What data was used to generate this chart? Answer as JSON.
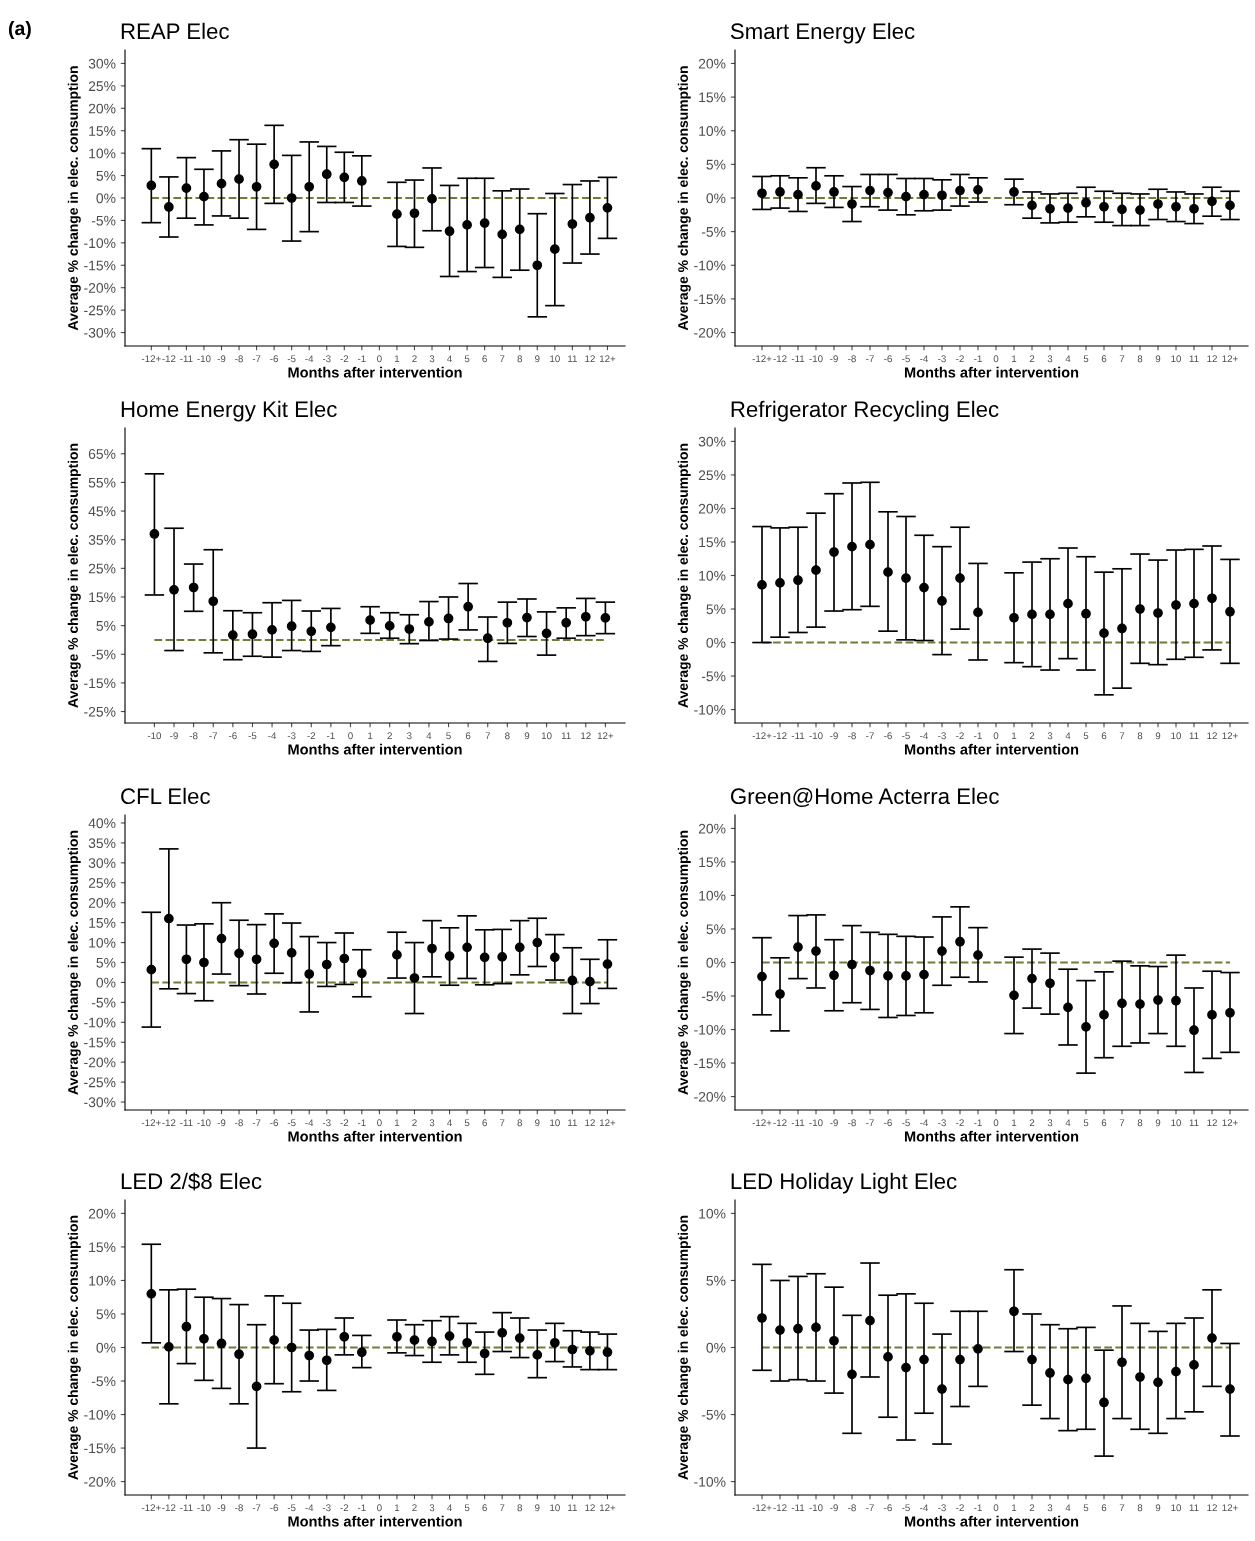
{
  "chart_data": [
    {
      "type": "scatter",
      "title": "REAP Elec",
      "xlabel": "Months after intervention",
      "ylabel": "Average % change in elec. consumption",
      "annotations": [
        "(a)"
      ],
      "color": "#000000",
      "marker": "circle",
      "grid": false,
      "categories": [
        "-12+",
        "-12",
        "-11",
        "-10",
        "-9",
        "-8",
        "-7",
        "-6",
        "-5",
        "-4",
        "-3",
        "-2",
        "-1",
        "0",
        "1",
        "2",
        "3",
        "4",
        "5",
        "6",
        "7",
        "8",
        "9",
        "10",
        "11",
        "12",
        "12+"
      ],
      "values": [
        2.8,
        -2,
        2.2,
        0.3,
        3.2,
        4.2,
        2.5,
        7.5,
        0,
        2.5,
        5.3,
        4.6,
        3.8,
        null,
        -3.6,
        -3.4,
        -0.2,
        -7.4,
        -6,
        -5.6,
        -8.1,
        -7,
        -15,
        -11.4,
        -5.8,
        -4.4,
        -2.2
      ],
      "errors": [
        [
          -5.5,
          11
        ],
        [
          -8.7,
          4.7
        ],
        [
          -4.5,
          9
        ],
        [
          -6,
          6.4
        ],
        [
          -4,
          10.5
        ],
        [
          -4.5,
          13
        ],
        [
          -7,
          12
        ],
        [
          -1.2,
          16.2
        ],
        [
          -9.6,
          9.5
        ],
        [
          -7.5,
          12.5
        ],
        [
          -1,
          11.5
        ],
        [
          -1,
          10.2
        ],
        [
          -1.8,
          9.4
        ],
        null,
        [
          -10.8,
          3.5
        ],
        [
          -11,
          4
        ],
        [
          -7.3,
          6.7
        ],
        [
          -17.5,
          2.8
        ],
        [
          -16.4,
          4.4
        ],
        [
          -15.5,
          4.4
        ],
        [
          -17.7,
          1.6
        ],
        [
          -16.1,
          2
        ],
        [
          -26.5,
          -3.5
        ],
        [
          -24,
          1
        ],
        [
          -14.5,
          3
        ],
        [
          -12.5,
          3.8
        ],
        [
          -9,
          4.6
        ]
      ],
      "ylim": [
        -33,
        33
      ],
      "yticks": [
        {
          "value": -30,
          "label": "-30%"
        },
        {
          "value": -25,
          "label": "-25%"
        },
        {
          "value": -20,
          "label": "-20%"
        },
        {
          "value": -15,
          "label": "-15%"
        },
        {
          "value": -10,
          "label": "-10%"
        },
        {
          "value": -5,
          "label": "-5%"
        },
        {
          "value": 0,
          "label": "0%"
        },
        {
          "value": 5,
          "label": "5%"
        },
        {
          "value": 10,
          "label": "10%"
        },
        {
          "value": 15,
          "label": "15%"
        },
        {
          "value": 20,
          "label": "20%"
        },
        {
          "value": 25,
          "label": "25%"
        },
        {
          "value": 30,
          "label": "30%"
        }
      ],
      "ref_lines": [
        {
          "axis": "y",
          "value": 0,
          "color": "#6b7d3a",
          "line_style": "dashed"
        }
      ]
    },
    {
      "type": "scatter",
      "title": "Smart Energy Elec",
      "xlabel": "Months after intervention",
      "ylabel": "Average % change in elec. consumption",
      "color": "#000000",
      "marker": "circle",
      "grid": false,
      "categories": [
        "-12+",
        "-12",
        "-11",
        "-10",
        "-9",
        "-8",
        "-7",
        "-6",
        "-5",
        "-4",
        "-3",
        "-2",
        "-1",
        "0",
        "1",
        "2",
        "3",
        "4",
        "5",
        "6",
        "7",
        "8",
        "9",
        "10",
        "11",
        "12",
        "12+"
      ],
      "values": [
        0.7,
        0.9,
        0.5,
        1.8,
        0.9,
        -0.9,
        1.1,
        0.8,
        0.2,
        0.5,
        0.4,
        1.1,
        1.2,
        null,
        0.9,
        -1.1,
        -1.6,
        -1.5,
        -0.7,
        -1.3,
        -1.7,
        -1.8,
        -0.9,
        -1.3,
        -1.6,
        -0.5,
        -1.1
      ],
      "errors": [
        [
          -1.7,
          3.2
        ],
        [
          -1.5,
          3.3
        ],
        [
          -2,
          3
        ],
        [
          -0.8,
          4.5
        ],
        [
          -1.4,
          3.3
        ],
        [
          -3.5,
          1.7
        ],
        [
          -1.3,
          3.5
        ],
        [
          -1.8,
          3.5
        ],
        [
          -2.5,
          2.9
        ],
        [
          -1.9,
          2.9
        ],
        [
          -1.8,
          2.7
        ],
        [
          -1.2,
          3.5
        ],
        [
          -0.6,
          3
        ],
        null,
        [
          -1,
          2.8
        ],
        [
          -3,
          0.9
        ],
        [
          -3.7,
          0.6
        ],
        [
          -3.6,
          0.7
        ],
        [
          -2.8,
          1.6
        ],
        [
          -3.6,
          1
        ],
        [
          -4.1,
          0.7
        ],
        [
          -4.1,
          0.6
        ],
        [
          -3.2,
          1.3
        ],
        [
          -3.5,
          0.9
        ],
        [
          -3.8,
          0.6
        ],
        [
          -2.7,
          1.6
        ],
        [
          -3.2,
          1
        ]
      ],
      "ylim": [
        -22,
        22
      ],
      "yticks": [
        {
          "value": -20,
          "label": "-20%"
        },
        {
          "value": -15,
          "label": "-15%"
        },
        {
          "value": -10,
          "label": "-10%"
        },
        {
          "value": -5,
          "label": "-5%"
        },
        {
          "value": 0,
          "label": "0%"
        },
        {
          "value": 5,
          "label": "5%"
        },
        {
          "value": 10,
          "label": "10%"
        },
        {
          "value": 15,
          "label": "15%"
        },
        {
          "value": 20,
          "label": "20%"
        }
      ],
      "ref_lines": [
        {
          "axis": "y",
          "value": 0,
          "color": "#6b7d3a",
          "line_style": "dashed"
        }
      ]
    },
    {
      "type": "scatter",
      "title": "Home Energy Kit Elec",
      "xlabel": "Months after intervention",
      "ylabel": "Average % change in elec. consumption",
      "color": "#000000",
      "marker": "circle",
      "grid": false,
      "categories": [
        "-10",
        "-9",
        "-8",
        "-7",
        "-6",
        "-5",
        "-4",
        "-3",
        "-2",
        "-1",
        "0",
        "1",
        "2",
        "3",
        "4",
        "5",
        "6",
        "7",
        "8",
        "9",
        "10",
        "11",
        "12",
        "12+"
      ],
      "values": [
        37,
        17.5,
        18.3,
        13.5,
        1.7,
        2,
        3.5,
        4.8,
        3,
        4.4,
        null,
        6.9,
        4.9,
        3.8,
        6.3,
        7.5,
        11.6,
        0.6,
        6,
        7.8,
        2.3,
        6,
        8.1,
        7.7
      ],
      "errors": [
        [
          15.7,
          58
        ],
        [
          -3.7,
          39
        ],
        [
          10,
          26.5
        ],
        [
          -4.5,
          31.5
        ],
        [
          -6.9,
          10.2
        ],
        [
          -5.7,
          9.5
        ],
        [
          -6,
          13
        ],
        [
          -3.7,
          13.8
        ],
        [
          -4,
          10.1
        ],
        [
          -2,
          11
        ],
        null,
        [
          2.3,
          11.6
        ],
        [
          0.6,
          9.5
        ],
        [
          -1.3,
          8.8
        ],
        [
          -0.2,
          13.4
        ],
        [
          0.3,
          15
        ],
        [
          3.5,
          19.7
        ],
        [
          -7.5,
          8
        ],
        [
          -1.2,
          13.2
        ],
        [
          1.2,
          14.3
        ],
        [
          -5.3,
          9.8
        ],
        [
          0.6,
          11.2
        ],
        [
          1.5,
          14.5
        ],
        [
          2.2,
          13.2
        ]
      ],
      "ylim": [
        -29,
        74
      ],
      "yticks": [
        {
          "value": -25,
          "label": "-25%"
        },
        {
          "value": -15,
          "label": "-15%"
        },
        {
          "value": -5,
          "label": "-5%"
        },
        {
          "value": 5,
          "label": "5%"
        },
        {
          "value": 15,
          "label": "15%"
        },
        {
          "value": 25,
          "label": "25%"
        },
        {
          "value": 35,
          "label": "35%"
        },
        {
          "value": 45,
          "label": "45%"
        },
        {
          "value": 55,
          "label": "55%"
        },
        {
          "value": 65,
          "label": "65%"
        }
      ],
      "ref_lines": [
        {
          "axis": "y",
          "value": 0,
          "color": "#6b7d3a",
          "line_style": "dashed"
        }
      ]
    },
    {
      "type": "scatter",
      "title": "Refrigerator Recycling Elec",
      "xlabel": "Months after intervention",
      "ylabel": "Average % change in elec. consumption",
      "color": "#000000",
      "marker": "circle",
      "grid": false,
      "categories": [
        "-12+",
        "-12",
        "-11",
        "-10",
        "-9",
        "-8",
        "-7",
        "-6",
        "-5",
        "-4",
        "-3",
        "-2",
        "-1",
        "0",
        "1",
        "2",
        "3",
        "4",
        "5",
        "6",
        "7",
        "8",
        "9",
        "10",
        "11",
        "12",
        "12+"
      ],
      "values": [
        8.6,
        8.9,
        9.3,
        10.8,
        13.5,
        14.3,
        14.6,
        10.5,
        9.6,
        8.2,
        6.2,
        9.6,
        4.5,
        null,
        3.7,
        4.2,
        4.2,
        5.8,
        4.3,
        1.4,
        2.1,
        5,
        4.4,
        5.6,
        5.8,
        6.6,
        4.6
      ],
      "errors": [
        [
          0,
          17.3
        ],
        [
          0.8,
          17.1
        ],
        [
          1.5,
          17.2
        ],
        [
          2.3,
          19.3
        ],
        [
          4.7,
          22.2
        ],
        [
          4.9,
          23.8
        ],
        [
          5.4,
          23.9
        ],
        [
          1.7,
          19.5
        ],
        [
          0.4,
          18.8
        ],
        [
          0.3,
          16
        ],
        [
          -1.8,
          14.3
        ],
        [
          2,
          17.2
        ],
        [
          -2.6,
          11.8
        ],
        null,
        [
          -3,
          10.4
        ],
        [
          -3.6,
          12
        ],
        [
          -4.1,
          12.5
        ],
        [
          -2.4,
          14.1
        ],
        [
          -4.1,
          12.8
        ],
        [
          -7.8,
          10.5
        ],
        [
          -6.8,
          11
        ],
        [
          -3.1,
          13.2
        ],
        [
          -3.3,
          12.3
        ],
        [
          -2.5,
          13.8
        ],
        [
          -2.2,
          13.9
        ],
        [
          -1.1,
          14.4
        ],
        [
          -3.1,
          12.4
        ]
      ],
      "ylim": [
        -12,
        32
      ],
      "yticks": [
        {
          "value": -10,
          "label": "-10%"
        },
        {
          "value": -5,
          "label": "-5%"
        },
        {
          "value": 0,
          "label": "0%"
        },
        {
          "value": 5,
          "label": "5%"
        },
        {
          "value": 10,
          "label": "10%"
        },
        {
          "value": 15,
          "label": "15%"
        },
        {
          "value": 20,
          "label": "20%"
        },
        {
          "value": 25,
          "label": "25%"
        },
        {
          "value": 30,
          "label": "30%"
        }
      ],
      "ref_lines": [
        {
          "axis": "y",
          "value": 0,
          "color": "#6b7d3a",
          "line_style": "dashed"
        }
      ]
    },
    {
      "type": "scatter",
      "title": "CFL Elec",
      "xlabel": "Months after intervention",
      "ylabel": "Average % change in elec. consumption",
      "color": "#000000",
      "marker": "circle",
      "grid": false,
      "categories": [
        "-12+",
        "-12",
        "-11",
        "-10",
        "-9",
        "-8",
        "-7",
        "-6",
        "-5",
        "-4",
        "-3",
        "-2",
        "-1",
        "0",
        "1",
        "2",
        "3",
        "4",
        "5",
        "6",
        "7",
        "8",
        "9",
        "10",
        "11",
        "12",
        "12+"
      ],
      "values": [
        3.2,
        16,
        5.8,
        5,
        11,
        7.3,
        5.8,
        9.8,
        7.4,
        2.1,
        4.5,
        6,
        2.3,
        null,
        6.9,
        1.1,
        8.5,
        6.6,
        8.8,
        6.3,
        6.4,
        8.8,
        10,
        6.3,
        0.5,
        0.2,
        4.6
      ],
      "errors": [
        [
          -11.2,
          17.6
        ],
        [
          -1.6,
          33.5
        ],
        [
          -2.8,
          14.4
        ],
        [
          -4.6,
          14.7
        ],
        [
          2.1,
          20
        ],
        [
          -0.8,
          15.6
        ],
        [
          -2.9,
          14.5
        ],
        [
          2.3,
          17.2
        ],
        [
          -0.1,
          14.9
        ],
        [
          -7.4,
          11.5
        ],
        [
          -1,
          10
        ],
        [
          -0.5,
          12.4
        ],
        [
          -3.6,
          8.2
        ],
        null,
        [
          1.1,
          12.6
        ],
        [
          -7.8,
          10
        ],
        [
          1.4,
          15.5
        ],
        [
          -0.7,
          13.7
        ],
        [
          1,
          16.7
        ],
        [
          -0.6,
          13.2
        ],
        [
          -0.3,
          13.3
        ],
        [
          1.9,
          15.5
        ],
        [
          4,
          16.1
        ],
        [
          0.6,
          12
        ],
        [
          -7.8,
          8.7
        ],
        [
          -5.3,
          5.8
        ],
        [
          -1.5,
          10.7
        ]
      ],
      "ylim": [
        -32,
        42
      ],
      "yticks": [
        {
          "value": -30,
          "label": "-30%"
        },
        {
          "value": -25,
          "label": "-25%"
        },
        {
          "value": -20,
          "label": "-20%"
        },
        {
          "value": -15,
          "label": "-15%"
        },
        {
          "value": -10,
          "label": "-10%"
        },
        {
          "value": -5,
          "label": "-5%"
        },
        {
          "value": 0,
          "label": "0%"
        },
        {
          "value": 5,
          "label": "5%"
        },
        {
          "value": 10,
          "label": "10%"
        },
        {
          "value": 15,
          "label": "15%"
        },
        {
          "value": 20,
          "label": "20%"
        },
        {
          "value": 25,
          "label": "25%"
        },
        {
          "value": 30,
          "label": "30%"
        },
        {
          "value": 35,
          "label": "35%"
        },
        {
          "value": 40,
          "label": "40%"
        }
      ],
      "ref_lines": [
        {
          "axis": "y",
          "value": 0,
          "color": "#6b7d3a",
          "line_style": "dashed"
        }
      ]
    },
    {
      "type": "scatter",
      "title": "Green@Home Acterra Elec",
      "xlabel": "Months after intervention",
      "ylabel": "Average % change in elec. consumption",
      "color": "#000000",
      "marker": "circle",
      "grid": false,
      "categories": [
        "-12+",
        "-12",
        "-11",
        "-10",
        "-9",
        "-8",
        "-7",
        "-6",
        "-5",
        "-4",
        "-3",
        "-2",
        "-1",
        "0",
        "1",
        "2",
        "3",
        "4",
        "5",
        "6",
        "7",
        "8",
        "9",
        "10",
        "11",
        "12",
        "12+"
      ],
      "values": [
        -2.1,
        -4.7,
        2.3,
        1.7,
        -1.9,
        -0.3,
        -1.2,
        -2,
        -2,
        -1.8,
        1.7,
        3.1,
        1.1,
        null,
        -4.9,
        -2.4,
        -3.1,
        -6.7,
        -9.6,
        -7.8,
        -6.1,
        -6.2,
        -5.6,
        -5.7,
        -10.1,
        -7.8,
        -7.5
      ],
      "errors": [
        [
          -7.8,
          3.7
        ],
        [
          -10.2,
          0.7
        ],
        [
          -2.4,
          7
        ],
        [
          -3.8,
          7.1
        ],
        [
          -7.2,
          3.4
        ],
        [
          -6,
          5.5
        ],
        [
          -7,
          4.5
        ],
        [
          -8.2,
          4.2
        ],
        [
          -7.9,
          3.9
        ],
        [
          -7.5,
          3.8
        ],
        [
          -3.4,
          6.8
        ],
        [
          -2.2,
          8.3
        ],
        [
          -2.9,
          5.2
        ],
        null,
        [
          -10.6,
          0.8
        ],
        [
          -6.8,
          2
        ],
        [
          -7.7,
          1.4
        ],
        [
          -12.3,
          -1
        ],
        [
          -16.5,
          -2.7
        ],
        [
          -14.2,
          -1.4
        ],
        [
          -12.5,
          0.2
        ],
        [
          -12,
          -0.5
        ],
        [
          -10.6,
          -0.6
        ],
        [
          -12.5,
          1.1
        ],
        [
          -16.4,
          -3.8
        ],
        [
          -14.3,
          -1.3
        ],
        [
          -13.4,
          -1.5
        ]
      ],
      "ylim": [
        -22,
        22
      ],
      "yticks": [
        {
          "value": -20,
          "label": "-20%"
        },
        {
          "value": -15,
          "label": "-15%"
        },
        {
          "value": -10,
          "label": "-10%"
        },
        {
          "value": -5,
          "label": "-5%"
        },
        {
          "value": 0,
          "label": "0%"
        },
        {
          "value": 5,
          "label": "5%"
        },
        {
          "value": 10,
          "label": "10%"
        },
        {
          "value": 15,
          "label": "15%"
        },
        {
          "value": 20,
          "label": "20%"
        }
      ],
      "ref_lines": [
        {
          "axis": "y",
          "value": 0,
          "color": "#6b7d3a",
          "line_style": "dashed"
        }
      ]
    },
    {
      "type": "scatter",
      "title": "LED 2/$8 Elec",
      "xlabel": "Months after intervention",
      "ylabel": "Average % change in elec. consumption",
      "color": "#000000",
      "marker": "circle",
      "grid": false,
      "categories": [
        "-12+",
        "-12",
        "-11",
        "-10",
        "-9",
        "-8",
        "-7",
        "-6",
        "-5",
        "-4",
        "-3",
        "-2",
        "-1",
        "0",
        "1",
        "2",
        "3",
        "4",
        "5",
        "6",
        "7",
        "8",
        "9",
        "10",
        "11",
        "12",
        "12+"
      ],
      "values": [
        8,
        0.1,
        3.1,
        1.3,
        0.6,
        -1,
        -5.8,
        1.1,
        0,
        -1.2,
        -1.9,
        1.6,
        -0.7,
        null,
        1.6,
        1.1,
        0.9,
        1.7,
        0.7,
        -0.9,
        2.2,
        1.4,
        -1.1,
        0.7,
        -0.3,
        -0.5,
        -0.7
      ],
      "errors": [
        [
          0.7,
          15.4
        ],
        [
          -8.4,
          8.6
        ],
        [
          -2.4,
          8.7
        ],
        [
          -4.9,
          7.5
        ],
        [
          -6.1,
          7.3
        ],
        [
          -8.4,
          6.4
        ],
        [
          -15,
          3.4
        ],
        [
          -5.4,
          7.7
        ],
        [
          -6.6,
          6.6
        ],
        [
          -5,
          2.6
        ],
        [
          -6.4,
          2.7
        ],
        [
          -1.1,
          4.4
        ],
        [
          -3,
          1.8
        ],
        null,
        [
          -0.8,
          4.1
        ],
        [
          -1.2,
          3.4
        ],
        [
          -2.2,
          4
        ],
        [
          -1.1,
          4.6
        ],
        [
          -2.2,
          3.6
        ],
        [
          -4,
          2.3
        ],
        [
          -0.6,
          5.2
        ],
        [
          -1.5,
          4.4
        ],
        [
          -4.5,
          2.6
        ],
        [
          -2.1,
          3.6
        ],
        [
          -2.9,
          2.5
        ],
        [
          -3.3,
          2.3
        ],
        [
          -3.3,
          2
        ]
      ],
      "ylim": [
        -22,
        22
      ],
      "yticks": [
        {
          "value": -20,
          "label": "-20%"
        },
        {
          "value": -15,
          "label": "-15%"
        },
        {
          "value": -10,
          "label": "-10%"
        },
        {
          "value": -5,
          "label": "-5%"
        },
        {
          "value": 0,
          "label": "0%"
        },
        {
          "value": 5,
          "label": "5%"
        },
        {
          "value": 10,
          "label": "10%"
        },
        {
          "value": 15,
          "label": "15%"
        },
        {
          "value": 20,
          "label": "20%"
        }
      ],
      "ref_lines": [
        {
          "axis": "y",
          "value": 0,
          "color": "#6b7d3a",
          "line_style": "dashed"
        }
      ]
    },
    {
      "type": "scatter",
      "title": "LED Holiday Light Elec",
      "xlabel": "Months after intervention",
      "ylabel": "Average % change in elec. consumption",
      "color": "#000000",
      "marker": "circle",
      "grid": false,
      "categories": [
        "-12+",
        "-12",
        "-11",
        "-10",
        "-9",
        "-8",
        "-7",
        "-6",
        "-5",
        "-4",
        "-3",
        "-2",
        "-1",
        "0",
        "1",
        "2",
        "3",
        "4",
        "5",
        "6",
        "7",
        "8",
        "9",
        "10",
        "11",
        "12",
        "12+"
      ],
      "values": [
        2.2,
        1.3,
        1.4,
        1.5,
        0.5,
        -2,
        2,
        -0.7,
        -1.5,
        -0.9,
        -3.1,
        -0.9,
        -0.1,
        null,
        2.7,
        -0.9,
        -1.9,
        -2.4,
        -2.3,
        -4.1,
        -1.1,
        -2.2,
        -2.6,
        -1.8,
        -1.3,
        0.7,
        -3.1
      ],
      "errors": [
        [
          -1.7,
          6.2
        ],
        [
          -2.5,
          5
        ],
        [
          -2.4,
          5.3
        ],
        [
          -2.5,
          5.5
        ],
        [
          -3.4,
          4.5
        ],
        [
          -6.4,
          2.4
        ],
        [
          -2.2,
          6.3
        ],
        [
          -5.2,
          3.9
        ],
        [
          -6.9,
          4
        ],
        [
          -4.9,
          3.3
        ],
        [
          -7.2,
          1
        ],
        [
          -4.4,
          2.7
        ],
        [
          -2.9,
          2.7
        ],
        null,
        [
          -0.3,
          5.8
        ],
        [
          -4.3,
          2.5
        ],
        [
          -5.3,
          1.7
        ],
        [
          -6.2,
          1.4
        ],
        [
          -6.1,
          1.5
        ],
        [
          -8.1,
          -0.2
        ],
        [
          -5.3,
          3.1
        ],
        [
          -6.1,
          1.8
        ],
        [
          -6.4,
          1.2
        ],
        [
          -5.3,
          1.8
        ],
        [
          -4.8,
          2.2
        ],
        [
          -2.9,
          4.3
        ],
        [
          -6.6,
          0.3
        ]
      ],
      "ylim": [
        -11,
        11
      ],
      "yticks": [
        {
          "value": -10,
          "label": "-10%"
        },
        {
          "value": -5,
          "label": "-5%"
        },
        {
          "value": 0,
          "label": "0%"
        },
        {
          "value": 5,
          "label": "5%"
        },
        {
          "value": 10,
          "label": "10%"
        }
      ],
      "ref_lines": [
        {
          "axis": "y",
          "value": 0,
          "color": "#6b7d3a",
          "line_style": "dashed"
        }
      ]
    }
  ]
}
